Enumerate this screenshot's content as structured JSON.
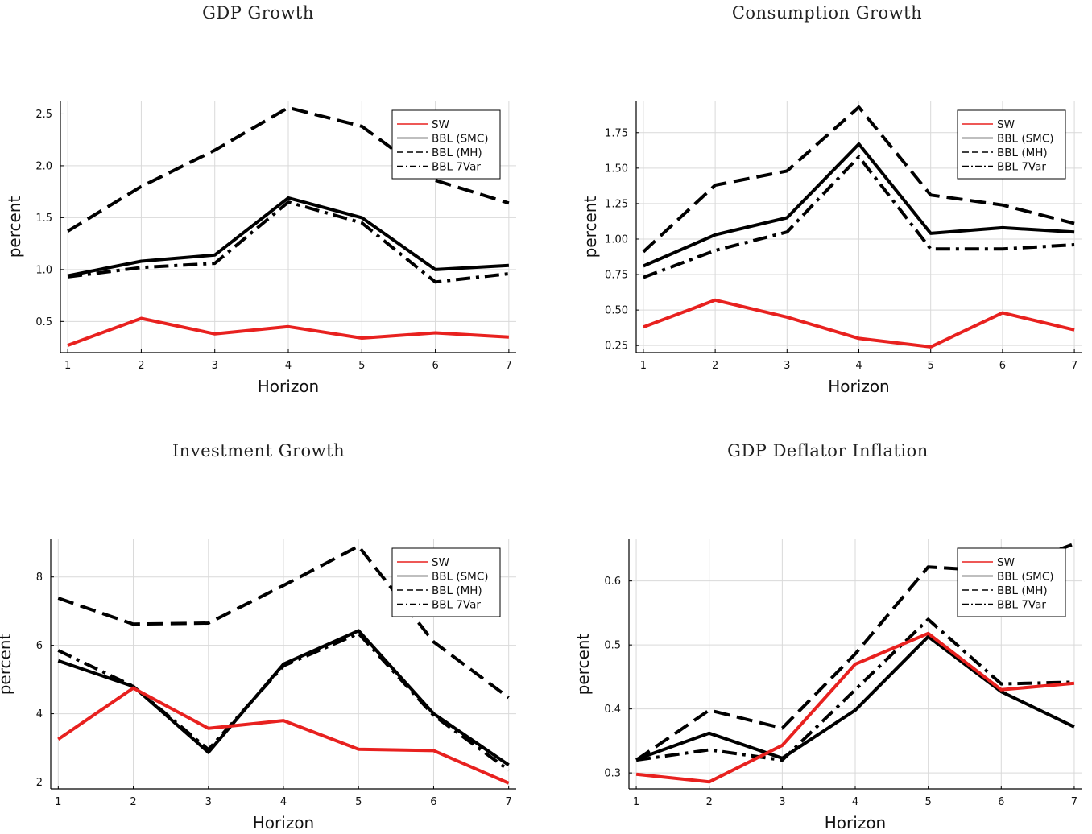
{
  "chart_data": [
    {
      "type": "line",
      "title": "GDP Growth",
      "xlabel": "Horizon",
      "ylabel": "percent",
      "x": [
        1,
        2,
        3,
        4,
        5,
        6,
        7
      ],
      "xlim": [
        0.9,
        7.1
      ],
      "ylim": [
        0.2,
        2.62
      ],
      "yticks": [
        0.5,
        1.0,
        1.5,
        2.0,
        2.5
      ],
      "ytick_labels": [
        "0.5",
        "1.0",
        "1.5",
        "2.0",
        "2.5"
      ],
      "grid": true,
      "legend_position": "top-right",
      "series": [
        {
          "name": "SW",
          "color": "#e8211f",
          "style": "solid",
          "values": [
            0.27,
            0.53,
            0.38,
            0.45,
            0.34,
            0.39,
            0.35
          ]
        },
        {
          "name": "BBL (SMC)",
          "color": "#000000",
          "style": "solid",
          "values": [
            0.94,
            1.08,
            1.14,
            1.69,
            1.5,
            1.0,
            1.04
          ]
        },
        {
          "name": "BBL (MH)",
          "color": "#000000",
          "style": "dashed",
          "values": [
            1.37,
            1.8,
            2.15,
            2.56,
            2.38,
            1.86,
            1.64
          ]
        },
        {
          "name": "BBL 7Var",
          "color": "#000000",
          "style": "dashdot",
          "values": [
            0.93,
            1.02,
            1.06,
            1.65,
            1.45,
            0.88,
            0.96
          ]
        }
      ]
    },
    {
      "type": "line",
      "title": "Consumption Growth",
      "xlabel": "Horizon",
      "ylabel": "percent",
      "x": [
        1,
        2,
        3,
        4,
        5,
        6,
        7
      ],
      "xlim": [
        0.9,
        7.1
      ],
      "ylim": [
        0.2,
        1.97
      ],
      "yticks": [
        0.25,
        0.5,
        0.75,
        1.0,
        1.25,
        1.5,
        1.75
      ],
      "ytick_labels": [
        "0.25",
        "0.50",
        "0.75",
        "1.00",
        "1.25",
        "1.50",
        "1.75"
      ],
      "grid": true,
      "legend_position": "top-right",
      "series": [
        {
          "name": "SW",
          "color": "#e8211f",
          "style": "solid",
          "values": [
            0.38,
            0.57,
            0.45,
            0.3,
            0.24,
            0.48,
            0.36
          ]
        },
        {
          "name": "BBL (SMC)",
          "color": "#000000",
          "style": "solid",
          "values": [
            0.81,
            1.03,
            1.15,
            1.67,
            1.04,
            1.08,
            1.05
          ]
        },
        {
          "name": "BBL (MH)",
          "color": "#000000",
          "style": "dashed",
          "values": [
            0.91,
            1.38,
            1.48,
            1.93,
            1.31,
            1.24,
            1.11
          ]
        },
        {
          "name": "BBL 7Var",
          "color": "#000000",
          "style": "dashdot",
          "values": [
            0.73,
            0.92,
            1.05,
            1.58,
            0.93,
            0.93,
            0.96
          ]
        }
      ]
    },
    {
      "type": "line",
      "title": "Investment Growth",
      "xlabel": "Horizon",
      "ylabel": "percent",
      "x": [
        1,
        2,
        3,
        4,
        5,
        6,
        7
      ],
      "xlim": [
        0.9,
        7.1
      ],
      "ylim": [
        1.8,
        9.1
      ],
      "yticks": [
        2,
        4,
        6,
        8
      ],
      "ytick_labels": [
        "2",
        "4",
        "6",
        "8"
      ],
      "grid": true,
      "legend_position": "top-right",
      "series": [
        {
          "name": "SW",
          "color": "#e8211f",
          "style": "solid",
          "values": [
            3.25,
            4.75,
            3.57,
            3.8,
            2.96,
            2.92,
            1.97
          ]
        },
        {
          "name": "BBL (SMC)",
          "color": "#000000",
          "style": "solid",
          "values": [
            5.55,
            4.8,
            2.87,
            5.45,
            6.43,
            4.0,
            2.5
          ]
        },
        {
          "name": "BBL (MH)",
          "color": "#000000",
          "style": "dashed",
          "values": [
            7.38,
            6.62,
            6.65,
            7.75,
            8.9,
            6.1,
            4.47
          ]
        },
        {
          "name": "BBL 7Var",
          "color": "#000000",
          "style": "dashdot",
          "values": [
            5.85,
            4.8,
            2.95,
            5.4,
            6.35,
            3.95,
            2.35
          ]
        }
      ]
    },
    {
      "type": "line",
      "title": "GDP Deflator Inflation",
      "xlabel": "Horizon",
      "ylabel": "percent",
      "x": [
        1,
        2,
        3,
        4,
        5,
        6,
        7
      ],
      "xlim": [
        0.9,
        7.1
      ],
      "ylim": [
        0.275,
        0.665
      ],
      "yticks": [
        0.3,
        0.4,
        0.5,
        0.6
      ],
      "ytick_labels": [
        "0.3",
        "0.4",
        "0.5",
        "0.6"
      ],
      "grid": true,
      "legend_position": "top-right",
      "series": [
        {
          "name": "SW",
          "color": "#e8211f",
          "style": "solid",
          "values": [
            0.298,
            0.286,
            0.343,
            0.47,
            0.518,
            0.43,
            0.44
          ]
        },
        {
          "name": "BBL (SMC)",
          "color": "#000000",
          "style": "solid",
          "values": [
            0.321,
            0.362,
            0.323,
            0.398,
            0.513,
            0.427,
            0.372
          ]
        },
        {
          "name": "BBL (MH)",
          "color": "#000000",
          "style": "dashed",
          "values": [
            0.32,
            0.398,
            0.37,
            0.486,
            0.622,
            0.615,
            0.658
          ]
        },
        {
          "name": "BBL 7Var",
          "color": "#000000",
          "style": "dashdot",
          "values": [
            0.32,
            0.336,
            0.32,
            0.43,
            0.54,
            0.439,
            0.442
          ]
        }
      ]
    }
  ]
}
